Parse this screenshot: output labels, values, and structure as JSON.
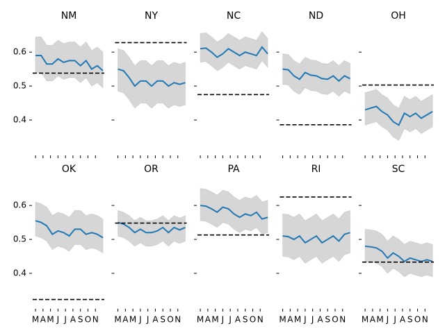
{
  "chart_data": [
    {
      "type": "line",
      "title": "NM",
      "x": [
        0,
        0.75,
        1.5,
        2.25,
        3,
        3.75,
        4.5,
        5.25,
        6,
        6.75,
        7.5,
        8.25,
        9
      ],
      "values": [
        0.59,
        0.59,
        0.565,
        0.565,
        0.58,
        0.57,
        0.575,
        0.575,
        0.56,
        0.575,
        0.55,
        0.56,
        0.545
      ],
      "lower": [
        0.54,
        0.54,
        0.515,
        0.515,
        0.53,
        0.52,
        0.525,
        0.525,
        0.51,
        0.525,
        0.5,
        0.51,
        0.495
      ],
      "upper": [
        0.645,
        0.645,
        0.62,
        0.62,
        0.635,
        0.625,
        0.63,
        0.63,
        0.615,
        0.63,
        0.605,
        0.615,
        0.6
      ],
      "reference": 0.538,
      "color": "#1f77b4",
      "band_color": "#d6d6d6",
      "reference_color": "#000000",
      "xlim": [
        -0.1,
        9
      ],
      "xticks": [
        0,
        1,
        2,
        3,
        4,
        5,
        6,
        7,
        8
      ],
      "ylim": [
        0.31,
        0.68
      ],
      "yticks": [
        0.4,
        0.5,
        0.6
      ]
    },
    {
      "type": "line",
      "title": "NY",
      "x": [
        0,
        0.75,
        1.5,
        2.25,
        3,
        3.75,
        4.5,
        5.25,
        6,
        6.75,
        7.5,
        8.25,
        9
      ],
      "values": [
        0.55,
        0.545,
        0.525,
        0.5,
        0.515,
        0.515,
        0.5,
        0.515,
        0.515,
        0.5,
        0.51,
        0.505,
        0.51
      ],
      "lower": [
        0.485,
        0.48,
        0.46,
        0.435,
        0.45,
        0.45,
        0.435,
        0.45,
        0.45,
        0.435,
        0.445,
        0.44,
        0.445
      ],
      "upper": [
        0.61,
        0.605,
        0.585,
        0.56,
        0.575,
        0.575,
        0.56,
        0.575,
        0.575,
        0.56,
        0.57,
        0.565,
        0.57
      ],
      "reference": 0.628,
      "color": "#1f77b4",
      "band_color": "#d6d6d6",
      "reference_color": "#000000",
      "xlim": [
        -0.1,
        9
      ],
      "xticks": [
        0,
        1,
        2,
        3,
        4,
        5,
        6,
        7,
        8
      ],
      "ylim": [
        0.31,
        0.68
      ],
      "yticks": [
        0.4,
        0.5,
        0.6
      ]
    },
    {
      "type": "line",
      "title": "NC",
      "x": [
        0,
        0.75,
        1.5,
        2.25,
        3,
        3.75,
        4.5,
        5.25,
        6,
        6.75,
        7.5,
        8.25,
        9
      ],
      "values": [
        0.61,
        0.612,
        0.6,
        0.585,
        0.595,
        0.61,
        0.6,
        0.59,
        0.6,
        0.595,
        0.59,
        0.615,
        0.595
      ],
      "lower": [
        0.57,
        0.572,
        0.56,
        0.545,
        0.555,
        0.57,
        0.56,
        0.55,
        0.56,
        0.555,
        0.55,
        0.575,
        0.555
      ],
      "upper": [
        0.655,
        0.657,
        0.645,
        0.63,
        0.64,
        0.655,
        0.645,
        0.635,
        0.645,
        0.64,
        0.635,
        0.66,
        0.64
      ],
      "reference": 0.475,
      "color": "#1f77b4",
      "band_color": "#d6d6d6",
      "reference_color": "#000000",
      "xlim": [
        -0.1,
        9
      ],
      "xticks": [
        0,
        1,
        2,
        3,
        4,
        5,
        6,
        7,
        8
      ],
      "ylim": [
        0.31,
        0.68
      ],
      "yticks": [
        0.4,
        0.5,
        0.6
      ]
    },
    {
      "type": "line",
      "title": "ND",
      "x": [
        0,
        0.75,
        1.5,
        2.25,
        3,
        3.75,
        4.5,
        5.25,
        6,
        6.75,
        7.5,
        8.25,
        9
      ],
      "values": [
        0.55,
        0.548,
        0.53,
        0.52,
        0.54,
        0.532,
        0.53,
        0.522,
        0.52,
        0.53,
        0.515,
        0.53,
        0.522
      ],
      "lower": [
        0.505,
        0.503,
        0.485,
        0.475,
        0.495,
        0.487,
        0.485,
        0.477,
        0.475,
        0.485,
        0.47,
        0.485,
        0.477
      ],
      "upper": [
        0.595,
        0.593,
        0.575,
        0.565,
        0.585,
        0.577,
        0.575,
        0.567,
        0.565,
        0.575,
        0.56,
        0.575,
        0.567
      ],
      "reference": 0.386,
      "color": "#1f77b4",
      "band_color": "#d6d6d6",
      "reference_color": "#000000",
      "xlim": [
        -0.1,
        9
      ],
      "xticks": [
        0,
        1,
        2,
        3,
        4,
        5,
        6,
        7,
        8
      ],
      "ylim": [
        0.31,
        0.68
      ],
      "yticks": [
        0.4,
        0.5,
        0.6
      ]
    },
    {
      "type": "line",
      "title": "OH",
      "x": [
        0,
        0.75,
        1.5,
        2.25,
        3,
        3.75,
        4.5,
        5.25,
        6,
        6.75,
        7.5,
        8.25,
        9
      ],
      "values": [
        0.43,
        0.435,
        0.44,
        0.425,
        0.415,
        0.395,
        0.385,
        0.42,
        0.41,
        0.42,
        0.405,
        0.415,
        0.425
      ],
      "lower": [
        0.385,
        0.39,
        0.395,
        0.38,
        0.37,
        0.35,
        0.34,
        0.375,
        0.365,
        0.375,
        0.36,
        0.37,
        0.38
      ],
      "upper": [
        0.48,
        0.485,
        0.49,
        0.475,
        0.465,
        0.445,
        0.435,
        0.47,
        0.46,
        0.47,
        0.455,
        0.465,
        0.475
      ],
      "reference": 0.503,
      "color": "#1f77b4",
      "band_color": "#d6d6d6",
      "reference_color": "#000000",
      "xlim": [
        -0.1,
        9
      ],
      "xticks": [
        0,
        1,
        2,
        3,
        4,
        5,
        6,
        7,
        8
      ],
      "ylim": [
        0.31,
        0.68
      ],
      "yticks": [
        0.4,
        0.5,
        0.6
      ]
    },
    {
      "type": "line",
      "title": "OK",
      "x": [
        0,
        0.75,
        1.5,
        2.25,
        3,
        3.75,
        4.5,
        5.25,
        6,
        6.75,
        7.5,
        8.25,
        9
      ],
      "values": [
        0.555,
        0.55,
        0.54,
        0.515,
        0.525,
        0.52,
        0.51,
        0.53,
        0.53,
        0.515,
        0.52,
        0.515,
        0.505
      ],
      "lower": [
        0.51,
        0.505,
        0.495,
        0.47,
        0.48,
        0.475,
        0.465,
        0.485,
        0.485,
        0.47,
        0.475,
        0.47,
        0.46
      ],
      "upper": [
        0.61,
        0.605,
        0.595,
        0.57,
        0.58,
        0.575,
        0.565,
        0.585,
        0.585,
        0.57,
        0.575,
        0.57,
        0.56
      ],
      "reference": 0.323,
      "color": "#1f77b4",
      "band_color": "#d6d6d6",
      "reference_color": "#000000",
      "xlim": [
        -0.1,
        9
      ],
      "xticks": [
        {
          "value": 0,
          "label": "M"
        },
        {
          "value": 1,
          "label": "A"
        },
        {
          "value": 2,
          "label": "M"
        },
        {
          "value": 3,
          "label": "J"
        },
        {
          "value": 4,
          "label": "J"
        },
        {
          "value": 5,
          "label": "A"
        },
        {
          "value": 6,
          "label": "S"
        },
        {
          "value": 7,
          "label": "O"
        },
        {
          "value": 8,
          "label": "N"
        }
      ],
      "ylim": [
        0.31,
        0.68
      ],
      "yticks": [
        0.4,
        0.5,
        0.6
      ]
    },
    {
      "type": "line",
      "title": "OR",
      "x": [
        0,
        0.75,
        1.5,
        2.25,
        3,
        3.75,
        4.5,
        5.25,
        6,
        6.75,
        7.5,
        8.25,
        9
      ],
      "values": [
        0.55,
        0.545,
        0.535,
        0.52,
        0.53,
        0.52,
        0.52,
        0.525,
        0.535,
        0.52,
        0.535,
        0.528,
        0.535
      ],
      "lower": [
        0.51,
        0.505,
        0.495,
        0.48,
        0.49,
        0.48,
        0.48,
        0.485,
        0.495,
        0.48,
        0.495,
        0.488,
        0.495
      ],
      "upper": [
        0.585,
        0.58,
        0.57,
        0.555,
        0.565,
        0.555,
        0.555,
        0.56,
        0.57,
        0.555,
        0.57,
        0.563,
        0.57
      ],
      "reference": 0.548,
      "color": "#1f77b4",
      "band_color": "#d6d6d6",
      "reference_color": "#000000",
      "xlim": [
        -0.1,
        9
      ],
      "xticks": [
        {
          "value": 0,
          "label": "M"
        },
        {
          "value": 1,
          "label": "A"
        },
        {
          "value": 2,
          "label": "M"
        },
        {
          "value": 3,
          "label": "J"
        },
        {
          "value": 4,
          "label": "J"
        },
        {
          "value": 5,
          "label": "A"
        },
        {
          "value": 6,
          "label": "S"
        },
        {
          "value": 7,
          "label": "O"
        },
        {
          "value": 8,
          "label": "N"
        }
      ],
      "ylim": [
        0.31,
        0.68
      ],
      "yticks": [
        0.4,
        0.5,
        0.6
      ]
    },
    {
      "type": "line",
      "title": "PA",
      "x": [
        0,
        0.75,
        1.5,
        2.25,
        3,
        3.75,
        4.5,
        5.25,
        6,
        6.75,
        7.5,
        8.25,
        9
      ],
      "values": [
        0.6,
        0.598,
        0.59,
        0.58,
        0.595,
        0.59,
        0.575,
        0.565,
        0.575,
        0.57,
        0.58,
        0.56,
        0.565
      ],
      "lower": [
        0.555,
        0.553,
        0.545,
        0.535,
        0.55,
        0.545,
        0.53,
        0.52,
        0.53,
        0.525,
        0.535,
        0.515,
        0.52
      ],
      "upper": [
        0.65,
        0.648,
        0.64,
        0.63,
        0.645,
        0.64,
        0.625,
        0.615,
        0.625,
        0.62,
        0.63,
        0.61,
        0.615
      ],
      "reference": 0.513,
      "color": "#1f77b4",
      "band_color": "#d6d6d6",
      "reference_color": "#000000",
      "xlim": [
        -0.1,
        9
      ],
      "xticks": [
        {
          "value": 0,
          "label": "M"
        },
        {
          "value": 1,
          "label": "A"
        },
        {
          "value": 2,
          "label": "M"
        },
        {
          "value": 3,
          "label": "J"
        },
        {
          "value": 4,
          "label": "J"
        },
        {
          "value": 5,
          "label": "A"
        },
        {
          "value": 6,
          "label": "S"
        },
        {
          "value": 7,
          "label": "O"
        },
        {
          "value": 8,
          "label": "N"
        }
      ],
      "ylim": [
        0.31,
        0.68
      ],
      "yticks": [
        0.4,
        0.5,
        0.6
      ]
    },
    {
      "type": "line",
      "title": "RI",
      "x": [
        0,
        0.75,
        1.5,
        2.25,
        3,
        3.75,
        4.5,
        5.25,
        6,
        6.75,
        7.5,
        8.25,
        9
      ],
      "values": [
        0.51,
        0.508,
        0.5,
        0.51,
        0.49,
        0.5,
        0.51,
        0.49,
        0.5,
        0.51,
        0.495,
        0.515,
        0.52
      ],
      "lower": [
        0.45,
        0.448,
        0.44,
        0.45,
        0.43,
        0.44,
        0.45,
        0.43,
        0.44,
        0.45,
        0.435,
        0.455,
        0.46
      ],
      "upper": [
        0.575,
        0.573,
        0.565,
        0.575,
        0.555,
        0.565,
        0.575,
        0.555,
        0.565,
        0.575,
        0.56,
        0.58,
        0.585
      ],
      "reference": 0.625,
      "color": "#1f77b4",
      "band_color": "#d6d6d6",
      "reference_color": "#000000",
      "xlim": [
        -0.1,
        9
      ],
      "xticks": [
        {
          "value": 0,
          "label": "M"
        },
        {
          "value": 1,
          "label": "A"
        },
        {
          "value": 2,
          "label": "M"
        },
        {
          "value": 3,
          "label": "J"
        },
        {
          "value": 4,
          "label": "J"
        },
        {
          "value": 5,
          "label": "A"
        },
        {
          "value": 6,
          "label": "S"
        },
        {
          "value": 7,
          "label": "O"
        },
        {
          "value": 8,
          "label": "N"
        }
      ],
      "ylim": [
        0.31,
        0.68
      ],
      "yticks": [
        0.4,
        0.5,
        0.6
      ]
    },
    {
      "type": "line",
      "title": "SC",
      "x": [
        0,
        0.75,
        1.5,
        2.25,
        3,
        3.75,
        4.5,
        5.25,
        6,
        6.75,
        7.5,
        8.25,
        9
      ],
      "values": [
        0.48,
        0.478,
        0.475,
        0.465,
        0.445,
        0.46,
        0.45,
        0.435,
        0.445,
        0.44,
        0.435,
        0.44,
        0.435
      ],
      "lower": [
        0.435,
        0.433,
        0.43,
        0.42,
        0.4,
        0.415,
        0.405,
        0.39,
        0.4,
        0.395,
        0.39,
        0.395,
        0.39
      ],
      "upper": [
        0.53,
        0.528,
        0.525,
        0.515,
        0.495,
        0.51,
        0.5,
        0.485,
        0.495,
        0.49,
        0.485,
        0.49,
        0.485
      ],
      "reference": 0.433,
      "color": "#1f77b4",
      "band_color": "#d6d6d6",
      "reference_color": "#000000",
      "xlim": [
        -0.1,
        9
      ],
      "xticks": [
        {
          "value": 0,
          "label": "M"
        },
        {
          "value": 1,
          "label": "A"
        },
        {
          "value": 2,
          "label": "M"
        },
        {
          "value": 3,
          "label": "J"
        },
        {
          "value": 4,
          "label": "J"
        },
        {
          "value": 5,
          "label": "A"
        },
        {
          "value": 6,
          "label": "S"
        },
        {
          "value": 7,
          "label": "O"
        },
        {
          "value": 8,
          "label": "N"
        }
      ],
      "ylim": [
        0.31,
        0.68
      ],
      "yticks": [
        0.4,
        0.5,
        0.6
      ]
    }
  ]
}
